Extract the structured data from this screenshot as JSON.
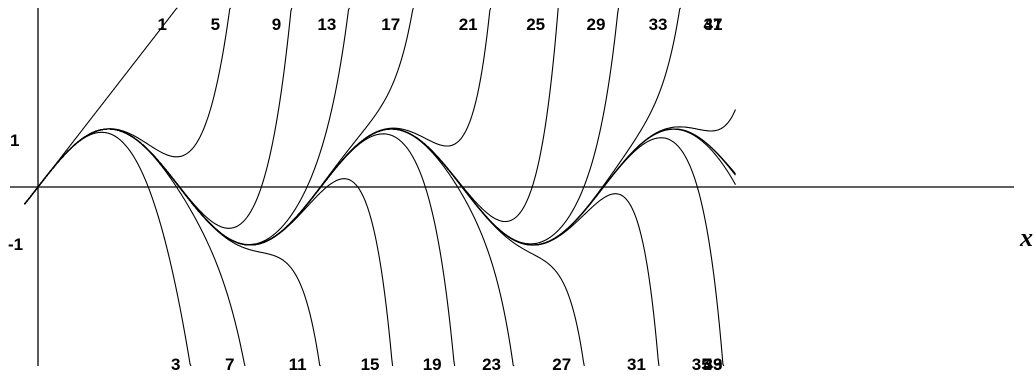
{
  "chart_data": {
    "type": "line",
    "title": "",
    "xlabel": "x",
    "ylabel": "",
    "y_tick_labels": [
      "1",
      "-1"
    ],
    "xlim": [
      -0.3,
      15.5
    ],
    "ylim": [
      -4.1,
      4.4
    ],
    "grid": false,
    "legend": "none",
    "colors": {
      "curve": "#000000",
      "axis": "#000000",
      "background": "#ffffff"
    },
    "target_function": "sin(x)",
    "series": [
      {
        "label": "1",
        "degree": 1,
        "labeled_at": "top"
      },
      {
        "label": "3",
        "degree": 3,
        "labeled_at": "bottom"
      },
      {
        "label": "5",
        "degree": 5,
        "labeled_at": "top"
      },
      {
        "label": "7",
        "degree": 7,
        "labeled_at": "bottom"
      },
      {
        "label": "9",
        "degree": 9,
        "labeled_at": "top"
      },
      {
        "label": "11",
        "degree": 11,
        "labeled_at": "bottom"
      },
      {
        "label": "13",
        "degree": 13,
        "labeled_at": "top"
      },
      {
        "label": "15",
        "degree": 15,
        "labeled_at": "bottom"
      },
      {
        "label": "17",
        "degree": 17,
        "labeled_at": "top"
      },
      {
        "label": "19",
        "degree": 19,
        "labeled_at": "bottom"
      },
      {
        "label": "21",
        "degree": 21,
        "labeled_at": "top"
      },
      {
        "label": "23",
        "degree": 23,
        "labeled_at": "bottom"
      },
      {
        "label": "25",
        "degree": 25,
        "labeled_at": "top"
      },
      {
        "label": "27",
        "degree": 27,
        "labeled_at": "bottom"
      },
      {
        "label": "29",
        "degree": 29,
        "labeled_at": "top"
      },
      {
        "label": "31",
        "degree": 31,
        "labeled_at": "bottom"
      },
      {
        "label": "33",
        "degree": 33,
        "labeled_at": "top"
      },
      {
        "label": "35",
        "degree": 35,
        "labeled_at": "bottom"
      },
      {
        "label": "37",
        "degree": 37,
        "labeled_at": "top"
      },
      {
        "label": "39",
        "degree": 39,
        "labeled_at": "bottom"
      },
      {
        "label": "41",
        "degree": 41,
        "labeled_at": "top"
      },
      {
        "label": "43",
        "degree": 43,
        "labeled_at": "bottom"
      }
    ]
  }
}
